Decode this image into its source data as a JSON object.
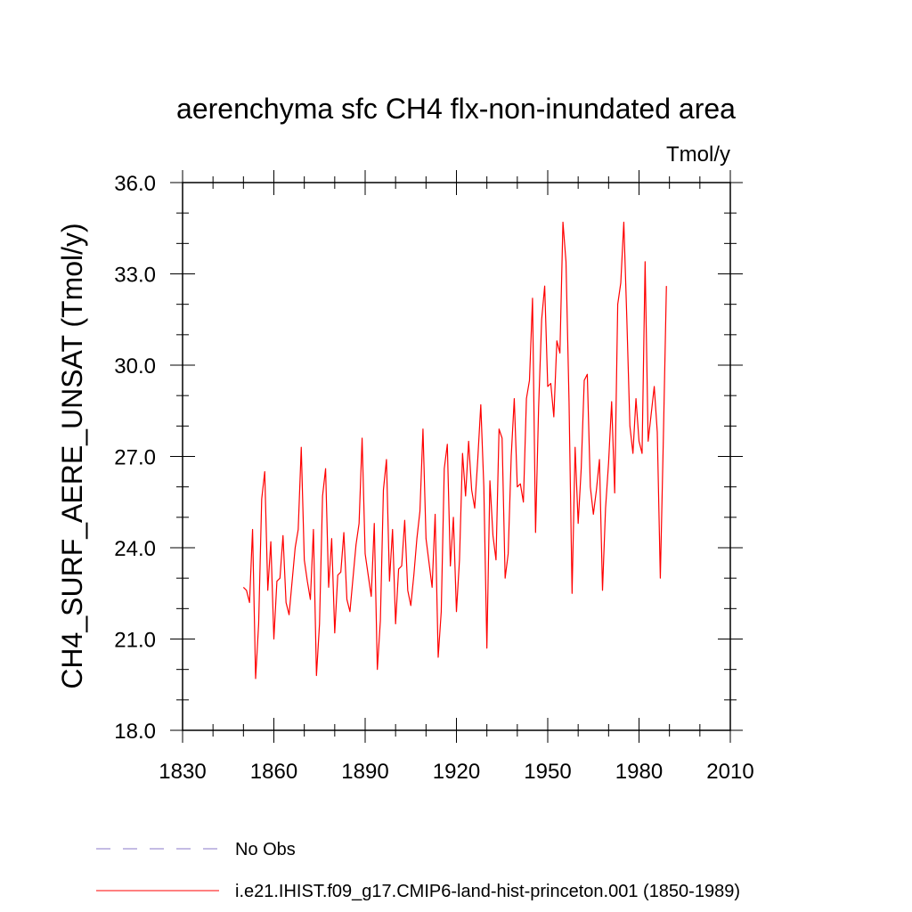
{
  "chart_data": {
    "type": "line",
    "title": "aerenchyma sfc CH4 flx-non-inundated area",
    "units": "Tmol/y",
    "xlabel": "",
    "ylabel": "CH4_SURF_AERE_UNSAT  (Tmol/y)",
    "xlim": [
      1830,
      2010
    ],
    "ylim": [
      18.0,
      36.0
    ],
    "x_ticks": [
      1830,
      1860,
      1890,
      1920,
      1950,
      1980,
      2010
    ],
    "x_tick_labels": [
      "1830",
      "1860",
      "1890",
      "1920",
      "1950",
      "1980",
      "2010"
    ],
    "y_ticks": [
      18.0,
      21.0,
      24.0,
      27.0,
      30.0,
      33.0,
      36.0
    ],
    "y_tick_labels": [
      "18.0",
      "21.0",
      "24.0",
      "27.0",
      "30.0",
      "33.0",
      "36.0"
    ],
    "grid": false,
    "legend_position": "bottom",
    "series": [
      {
        "name": "i.e21.IHIST.f09_g17.CMIP6-land-hist-princeton.001 (1850-1989)",
        "color": "#ff0000",
        "style": "solid",
        "x_start": 1850,
        "values": [
          22.7,
          22.6,
          22.2,
          24.6,
          19.7,
          21.5,
          25.6,
          26.5,
          22.6,
          24.2,
          21.0,
          22.9,
          23.0,
          24.4,
          22.2,
          21.8,
          22.9,
          24.0,
          24.6,
          27.3,
          23.6,
          22.9,
          22.3,
          24.6,
          19.8,
          21.5,
          25.7,
          26.6,
          22.7,
          24.3,
          21.2,
          23.1,
          23.2,
          24.5,
          22.3,
          21.9,
          23.0,
          24.1,
          24.8,
          27.6,
          23.8,
          23.1,
          22.4,
          24.8,
          20.0,
          21.6,
          25.9,
          26.9,
          22.9,
          24.6,
          21.5,
          23.3,
          23.4,
          24.9,
          22.6,
          22.1,
          23.1,
          24.3,
          25.2,
          27.9,
          24.3,
          23.5,
          22.7,
          25.1,
          20.4,
          21.9,
          26.6,
          27.4,
          23.4,
          25.0,
          21.9,
          23.6,
          27.1,
          25.7,
          27.5,
          25.9,
          25.3,
          26.9,
          28.7,
          26.0,
          20.7,
          26.2,
          24.4,
          23.6,
          27.9,
          27.6,
          23.0,
          23.8,
          27.0,
          28.9,
          26.0,
          26.1,
          25.5,
          28.9,
          29.5,
          32.2,
          24.5,
          28.6,
          31.5,
          32.6,
          29.3,
          29.4,
          28.3,
          30.8,
          30.4,
          34.7,
          33.4,
          28.8,
          22.5,
          27.3,
          24.8,
          26.6,
          29.5,
          29.7,
          26.0,
          25.1,
          25.9,
          26.9,
          22.6,
          25.3,
          26.8,
          28.8,
          25.8,
          32.0,
          32.7,
          34.7,
          31.5,
          28.0,
          27.1,
          28.9,
          27.5,
          27.1,
          33.4,
          27.5,
          28.4,
          29.3,
          27.8,
          23.0,
          27.6,
          32.6
        ]
      }
    ],
    "legend": [
      {
        "label": "No Obs",
        "color": "#8878c8",
        "style": "dashed"
      },
      {
        "label": "i.e21.IHIST.f09_g17.CMIP6-land-hist-princeton.001 (1850-1989)",
        "color": "#ff0000",
        "style": "solid"
      }
    ]
  }
}
